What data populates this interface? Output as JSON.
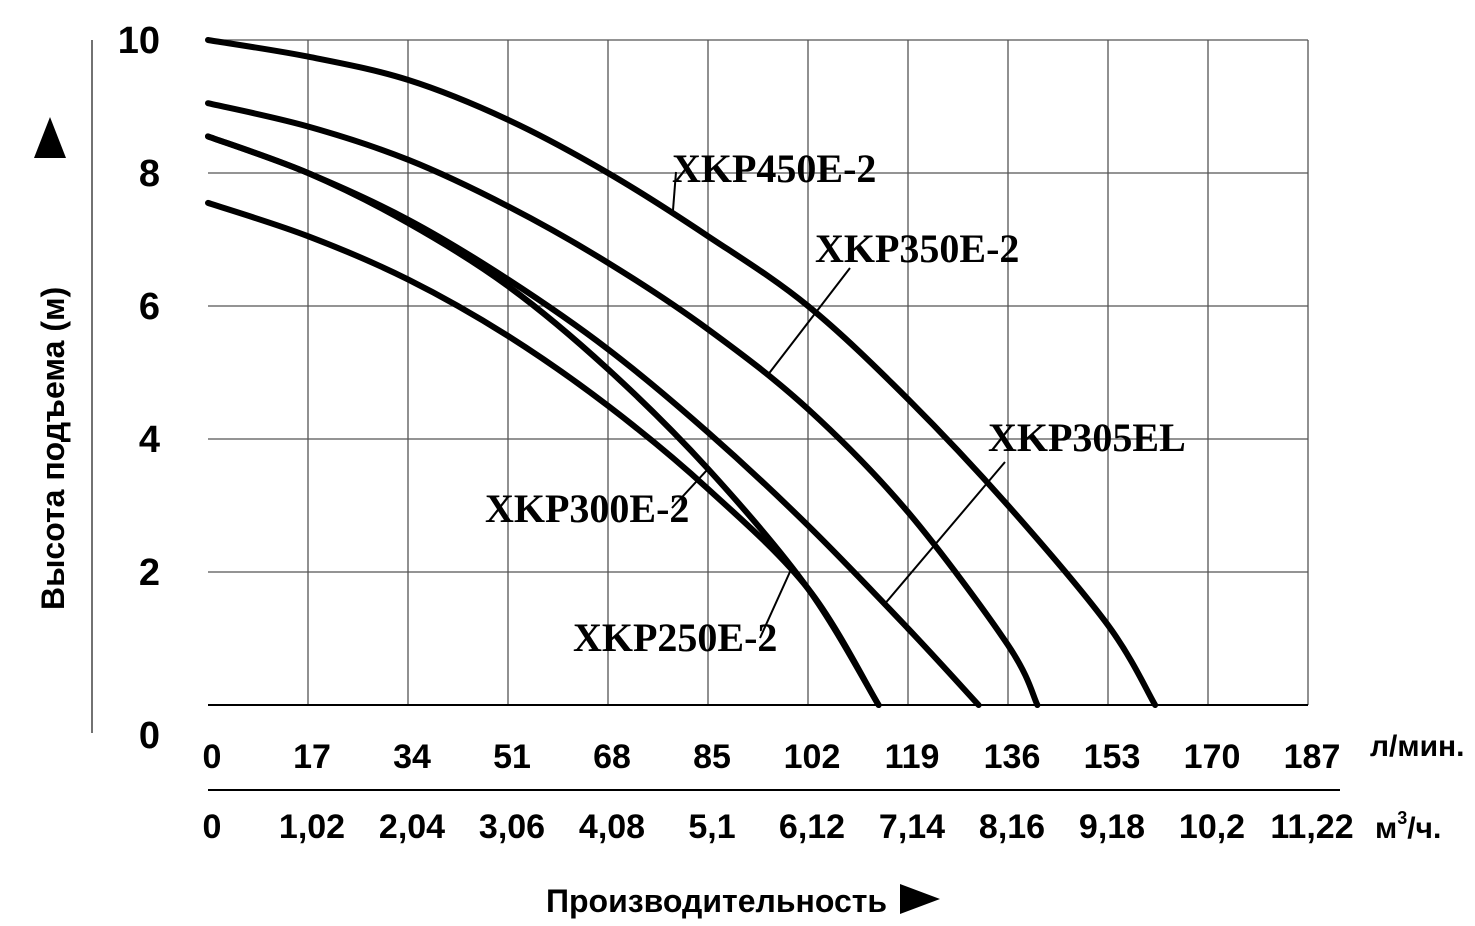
{
  "chart_data": {
    "type": "line",
    "xlabel": "Производительность",
    "ylabel": "Высота подъема (м)",
    "x_unit_primary": "л/мин.",
    "x_unit_secondary_base": "м",
    "x_unit_secondary_sup": "3",
    "x_unit_secondary_tail": "/ч.",
    "x_ticks_primary": [
      "0",
      "17",
      "34",
      "51",
      "68",
      "85",
      "102",
      "119",
      "136",
      "153",
      "170",
      "187"
    ],
    "x_ticks_secondary": [
      "0",
      "1,02",
      "2,04",
      "3,06",
      "4,08",
      "5,1",
      "6,12",
      "7,14",
      "8,16",
      "9,18",
      "10,2",
      "11,22"
    ],
    "y_ticks": [
      "0",
      "2",
      "4",
      "6",
      "8",
      "10"
    ],
    "xlim": [
      0,
      187
    ],
    "ylim": [
      0,
      10
    ],
    "grid": true,
    "series": [
      {
        "name": "XKP450E-2",
        "x": [
          0,
          17,
          34,
          51,
          68,
          85,
          102,
          119,
          136,
          153,
          161
        ],
        "y": [
          10.0,
          9.75,
          9.4,
          8.8,
          8.0,
          7.05,
          6.0,
          4.6,
          3.0,
          1.2,
          0
        ]
      },
      {
        "name": "XKP350E-2",
        "x": [
          0,
          17,
          34,
          51,
          68,
          85,
          102,
          119,
          136,
          141
        ],
        "y": [
          9.05,
          8.7,
          8.2,
          7.5,
          6.65,
          5.65,
          4.45,
          2.9,
          0.9,
          0
        ]
      },
      {
        "name": "XKP305EL",
        "x": [
          0,
          17,
          34,
          51,
          68,
          85,
          102,
          119,
          131
        ],
        "y": [
          8.55,
          8.0,
          7.3,
          6.4,
          5.35,
          4.1,
          2.7,
          1.15,
          0
        ]
      },
      {
        "name": "XKP300E-2",
        "x": [
          0,
          17,
          34,
          51,
          68,
          85,
          102,
          114
        ],
        "y": [
          8.55,
          8.0,
          7.25,
          6.3,
          5.05,
          3.55,
          1.75,
          0
        ]
      },
      {
        "name": "XKP250E-2",
        "x": [
          0,
          17,
          34,
          51,
          68,
          85,
          102,
          114
        ],
        "y": [
          7.55,
          7.05,
          6.4,
          5.55,
          4.5,
          3.25,
          1.75,
          0
        ]
      }
    ]
  }
}
